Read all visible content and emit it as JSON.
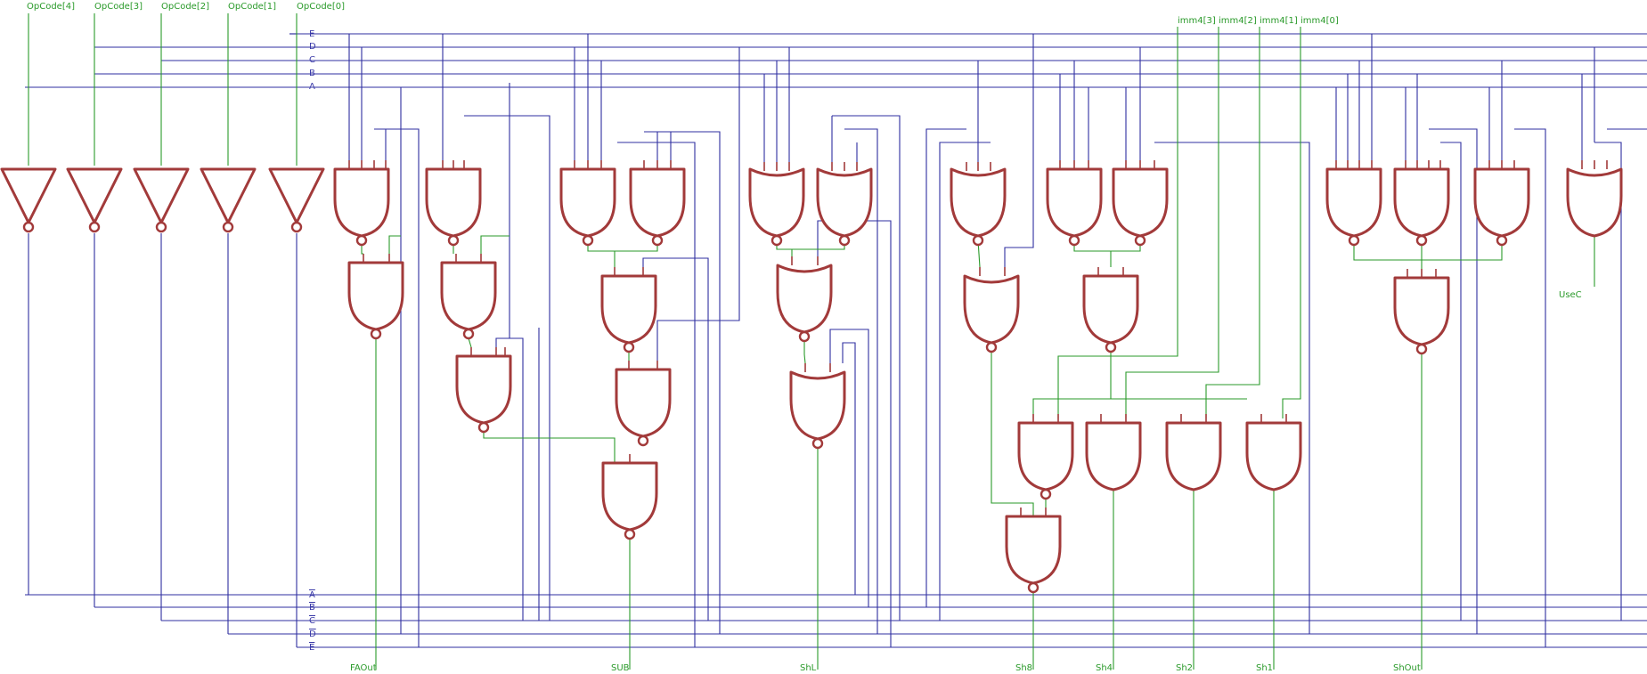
{
  "inputs": [
    "OpCode[4]",
    "OpCode[3]",
    "OpCode[2]",
    "OpCode[1]",
    "OpCode[0]"
  ],
  "imm_inputs": [
    "imm4[3]",
    "imm4[2]",
    "imm4[1]",
    "imm4[0]"
  ],
  "top_bus_labels": [
    "E",
    "D",
    "C",
    "B",
    "A"
  ],
  "bottom_bus_labels": [
    "A",
    "B",
    "C",
    "D",
    "E"
  ],
  "outputs": [
    "FAOut",
    "SUB",
    "ShL",
    "Sh8",
    "Sh4",
    "Sh2",
    "Sh1",
    "ShOut",
    "UseC"
  ],
  "colors": {
    "wire_bus": "#2f2fa0",
    "wire_signal": "#2a9a2a",
    "gate": "#a23a3a"
  }
}
